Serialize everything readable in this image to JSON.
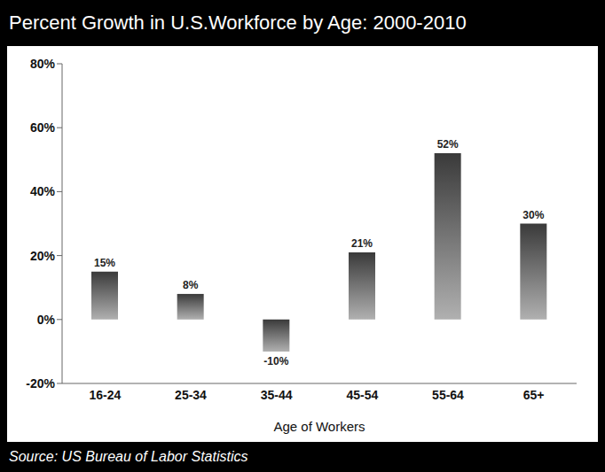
{
  "chart_data": {
    "type": "bar",
    "title": "Percent Growth in U.S.Workforce by Age: 2000-2010",
    "source": "Source: US Bureau of Labor Statistics",
    "x_label": "Age of Workers",
    "categories": [
      "16-24",
      "25-34",
      "35-44",
      "45-54",
      "55-64",
      "65+"
    ],
    "values": [
      15,
      8,
      -10,
      21,
      52,
      30
    ],
    "value_labels": [
      "15%",
      "8%",
      "-10%",
      "21%",
      "52%",
      "30%"
    ],
    "data_labels": true,
    "color": "#3a3a3a",
    "ylim": [
      -20,
      80
    ],
    "yticks": [
      {
        "value": -20,
        "label": "-20%"
      },
      {
        "value": 0,
        "label": "0%"
      },
      {
        "value": 20,
        "label": "20%"
      },
      {
        "value": 40,
        "label": "40%"
      },
      {
        "value": 60,
        "label": "60%"
      },
      {
        "value": 80,
        "label": "80%"
      }
    ],
    "grid": false
  }
}
